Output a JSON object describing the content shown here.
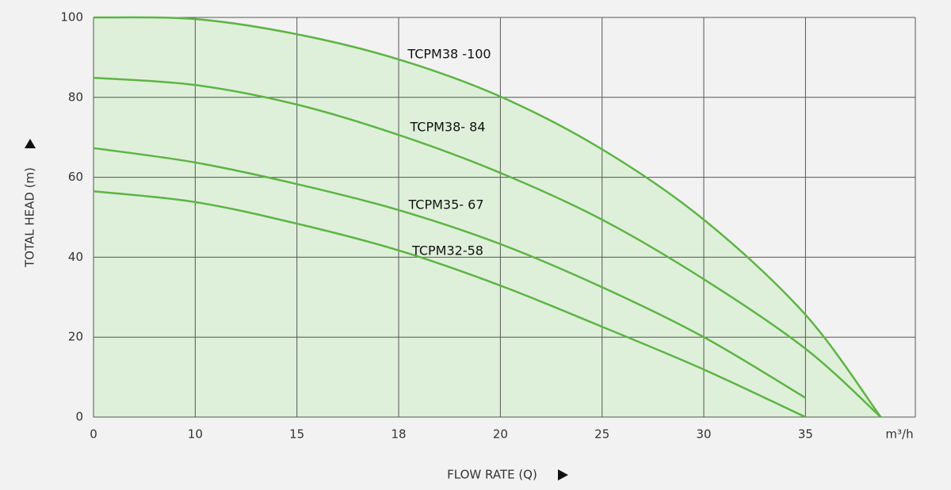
{
  "chart_data": {
    "type": "line",
    "y_label": "TOTAL HEAD (m)",
    "x_label": "FLOW RATE (Q)",
    "x_unit": "m³/h",
    "xlim": [
      0,
      40.4
    ],
    "xticks": [
      0,
      10,
      15,
      18,
      20,
      25,
      30,
      35
    ],
    "ylim": [
      0,
      100
    ],
    "yticks": [
      0,
      20,
      40,
      60,
      80,
      100
    ],
    "grid": true,
    "fill_color": "#dff0da",
    "series": [
      {
        "name": "TCPM38 -100",
        "color": "#5cb544",
        "x": [
          0,
          10,
          15,
          18,
          20,
          25,
          30,
          35,
          38.7
        ],
        "values": [
          100,
          99.6,
          95.8,
          89.5,
          80.2,
          67,
          49.4,
          25.6,
          0
        ]
      },
      {
        "name": "TCPM38- 84",
        "color": "#5cb544",
        "x": [
          0,
          10,
          15,
          18,
          20,
          25,
          30,
          35,
          38.7
        ],
        "values": [
          84.9,
          83.1,
          78.2,
          70.6,
          61.1,
          49.4,
          34.5,
          17.1,
          0
        ]
      },
      {
        "name": "TCPM35- 67",
        "color": "#5cb544",
        "x": [
          0,
          10,
          15,
          18,
          20,
          25,
          30,
          35
        ],
        "values": [
          67.3,
          63.7,
          58.3,
          51.8,
          43.3,
          32.5,
          20,
          4.8
        ]
      },
      {
        "name": "TCPM32-58",
        "color": "#5cb544",
        "x": [
          0,
          10,
          15,
          18,
          20,
          25,
          30,
          35
        ],
        "values": [
          56.5,
          53.8,
          48.4,
          41.7,
          32.9,
          22.6,
          11.9,
          0
        ]
      }
    ]
  }
}
